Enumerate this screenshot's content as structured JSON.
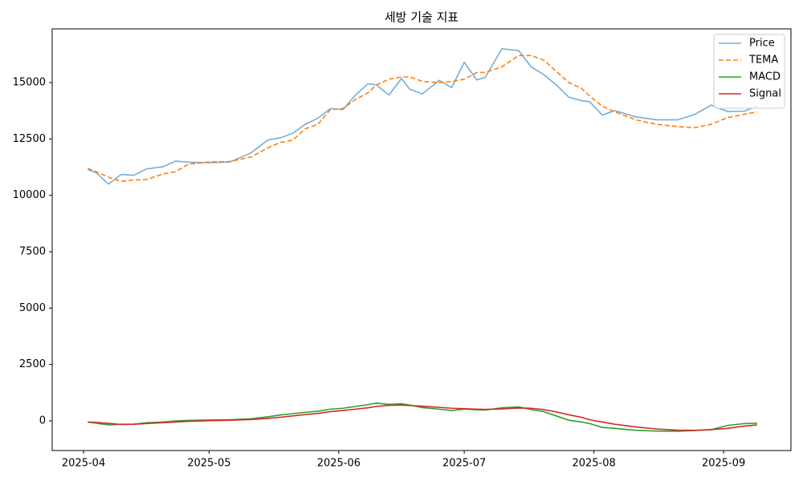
{
  "chart_data": {
    "type": "line",
    "title": "세방 기술 지표",
    "x": [
      1,
      3,
      6,
      9,
      12,
      15,
      19,
      22,
      25,
      30,
      35,
      40,
      44,
      47,
      50,
      53,
      56,
      59,
      62,
      65,
      68,
      70,
      73,
      76,
      78,
      81,
      85,
      88,
      91,
      94,
      96,
      100,
      104,
      107,
      110,
      113,
      116,
      119,
      121,
      124,
      127,
      132,
      137,
      142,
      146,
      150,
      154,
      158,
      161
    ],
    "xlim": [
      -7.5,
      169.1
    ],
    "xticks": [
      {
        "value": 0,
        "label": "2025-04"
      },
      {
        "value": 30,
        "label": "2025-05"
      },
      {
        "value": 61,
        "label": "2025-06"
      },
      {
        "value": 91,
        "label": "2025-07"
      },
      {
        "value": 122,
        "label": "2025-08"
      },
      {
        "value": 153,
        "label": "2025-09"
      }
    ],
    "ylim": [
      -1315,
      17383
    ],
    "yticks": [
      0,
      2500,
      5000,
      7500,
      10000,
      12500,
      15000
    ],
    "grid": false,
    "legend": "upper right",
    "series": [
      {
        "name": "Price",
        "color": "#76aed5",
        "dash": "solid",
        "values": [
          11150,
          11000,
          10500,
          10930,
          10890,
          11170,
          11270,
          11520,
          11470,
          11450,
          11480,
          11880,
          12450,
          12550,
          12750,
          13150,
          13420,
          13850,
          13800,
          14450,
          14950,
          14900,
          14450,
          15180,
          14700,
          14500,
          15100,
          14780,
          15900,
          15120,
          15230,
          16500,
          16420,
          15700,
          15350,
          14900,
          14350,
          14200,
          14150,
          13560,
          13760,
          13480,
          13350,
          13350,
          13580,
          14000,
          13720,
          13730,
          13970
        ]
      },
      {
        "name": "TEMA",
        "color": "#ff7f0e",
        "dash": "dashed",
        "values": [
          11200,
          11050,
          10800,
          10620,
          10680,
          10700,
          10950,
          11050,
          11380,
          11480,
          11500,
          11700,
          12100,
          12350,
          12450,
          12950,
          13150,
          13800,
          13850,
          14250,
          14550,
          14900,
          15150,
          15250,
          15250,
          15050,
          15000,
          15050,
          15150,
          15450,
          15450,
          15700,
          16200,
          16200,
          16000,
          15500,
          15000,
          14750,
          14400,
          13950,
          13700,
          13350,
          13150,
          13050,
          13000,
          13150,
          13450,
          13600,
          13700
        ]
      },
      {
        "name": "MACD",
        "color": "#2ca02c",
        "dash": "solid",
        "values": [
          -50,
          -100,
          -180,
          -150,
          -150,
          -80,
          -50,
          0,
          20,
          40,
          50,
          90,
          180,
          260,
          320,
          380,
          430,
          520,
          560,
          640,
          720,
          790,
          730,
          760,
          700,
          590,
          520,
          460,
          520,
          490,
          480,
          580,
          620,
          500,
          410,
          220,
          30,
          -50,
          -120,
          -290,
          -330,
          -420,
          -450,
          -460,
          -430,
          -390,
          -200,
          -120,
          -100
        ]
      },
      {
        "name": "Signal",
        "color": "#d62728",
        "dash": "solid",
        "values": [
          -50,
          -70,
          -110,
          -160,
          -150,
          -120,
          -80,
          -50,
          -20,
          10,
          30,
          60,
          110,
          160,
          220,
          280,
          330,
          410,
          460,
          520,
          580,
          640,
          690,
          700,
          680,
          650,
          600,
          560,
          540,
          520,
          510,
          530,
          570,
          560,
          500,
          400,
          270,
          160,
          50,
          -50,
          -150,
          -270,
          -360,
          -410,
          -420,
          -390,
          -330,
          -230,
          -180
        ]
      }
    ]
  }
}
